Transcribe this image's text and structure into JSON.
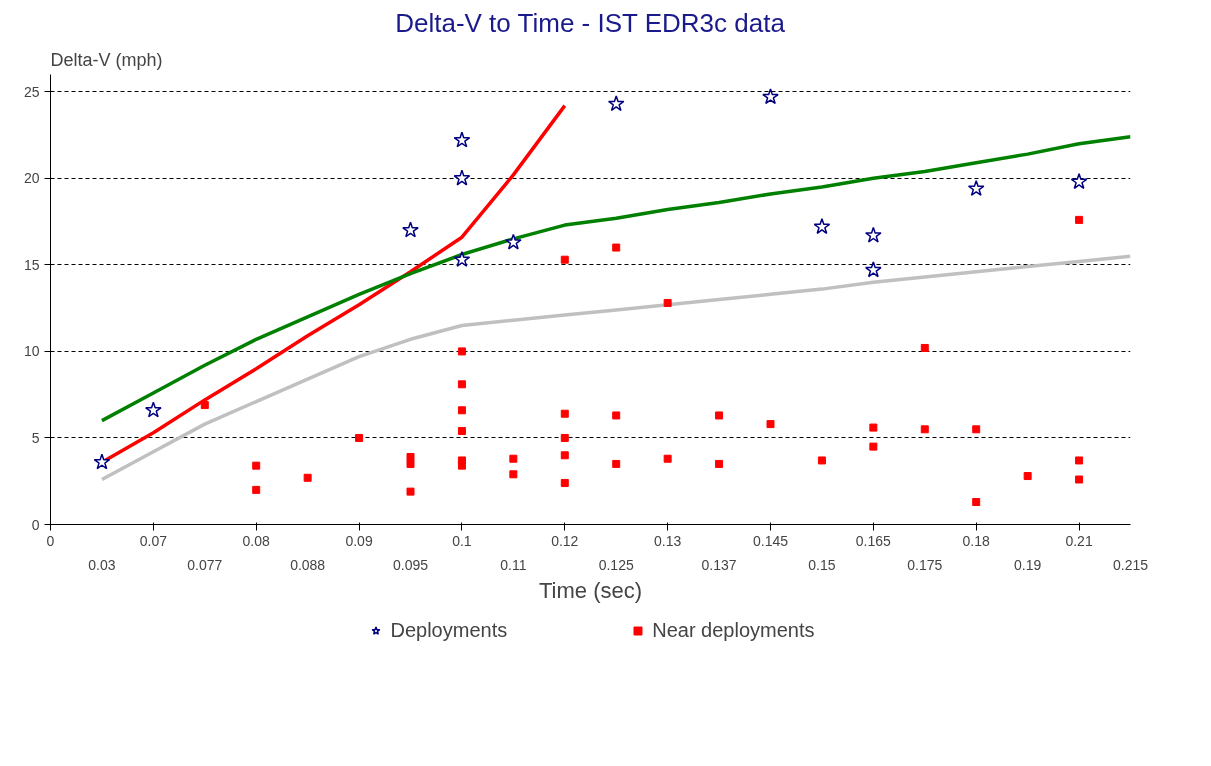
{
  "chart_data": {
    "type": "scatter",
    "title": "Delta-V to Time - IST EDR3c data",
    "xlabel": "Time (sec)",
    "ylabel": "Delta-V (mph)",
    "categories": [
      "0",
      "0.03",
      "0.07",
      "0.077",
      "0.08",
      "0.088",
      "0.09",
      "0.095",
      "0.1",
      "0.11",
      "0.12",
      "0.125",
      "0.13",
      "0.137",
      "0.145",
      "0.15",
      "0.165",
      "0.175",
      "0.18",
      "0.19",
      "0.21",
      "0.215"
    ],
    "ylim": [
      0,
      26
    ],
    "yticks": [
      0,
      5,
      10,
      15,
      20,
      25
    ],
    "grid": "y",
    "legend": "bottom",
    "series": [
      {
        "type": "line",
        "color": "#ff0000",
        "x": [
          "0.03",
          "0.07",
          "0.077",
          "0.08",
          "0.088",
          "0.09",
          "0.095",
          "0.1",
          "0.11",
          "0.12"
        ],
        "values": [
          3.6,
          5.3,
          7.2,
          9.0,
          10.9,
          12.7,
          14.6,
          16.6,
          20.2,
          24.2
        ]
      },
      {
        "type": "line",
        "color": "#008000",
        "x": [
          "0.03",
          "0.07",
          "0.077",
          "0.08",
          "0.088",
          "0.09",
          "0.095",
          "0.1",
          "0.11",
          "0.12",
          "0.125",
          "0.13",
          "0.137",
          "0.145",
          "0.15",
          "0.165",
          "0.175",
          "0.18",
          "0.19",
          "0.21",
          "0.215"
        ],
        "values": [
          6,
          7.6,
          9.2,
          10.7,
          12.0,
          13.3,
          14.5,
          15.6,
          16.5,
          17.3,
          17.7,
          18.2,
          18.6,
          19.1,
          19.5,
          20.0,
          20.4,
          20.9,
          21.4,
          22.0,
          22.4
        ]
      },
      {
        "type": "line",
        "color": "#c0c0c0",
        "x": [
          "0.03",
          "0.07",
          "0.077",
          "0.08",
          "0.088",
          "0.09",
          "0.095",
          "0.1",
          "0.11",
          "0.12",
          "0.125",
          "0.13",
          "0.137",
          "0.145",
          "0.15",
          "0.165",
          "0.175",
          "0.18",
          "0.19",
          "0.21",
          "0.215"
        ],
        "values": [
          2.6,
          4.2,
          5.8,
          7.1,
          8.4,
          9.7,
          10.7,
          11.5,
          11.8,
          12.1,
          12.4,
          12.7,
          13.0,
          13.3,
          13.6,
          14.0,
          14.3,
          14.6,
          14.9,
          15.2,
          15.5
        ]
      },
      {
        "name": "Deployments",
        "color": "#000080",
        "marker": "star",
        "x": [
          "0.03",
          "0.07",
          "0.095",
          "0.1",
          "0.1",
          "0.1",
          "0.11",
          "0.125",
          "0.145",
          "0.15",
          "0.165",
          "0.165",
          "0.18",
          "0.21"
        ],
        "values": [
          3.6,
          6.6,
          17,
          22.2,
          20,
          15.3,
          16.3,
          24.3,
          24.7,
          17.2,
          16.7,
          14.7,
          19.4,
          19.8
        ]
      },
      {
        "name": "Near deployments",
        "color": "#ff0000",
        "marker": "square",
        "x": [
          "0.077",
          "0.08",
          "0.08",
          "0.088",
          "0.09",
          "0.095",
          "0.095",
          "0.095",
          "0.1",
          "0.1",
          "0.1",
          "0.1",
          "0.1",
          "0.1",
          "0.11",
          "0.11",
          "0.12",
          "0.12",
          "0.12",
          "0.12",
          "0.12",
          "0.125",
          "0.125",
          "0.125",
          "0.13",
          "0.13",
          "0.137",
          "0.137",
          "0.145",
          "0.15",
          "0.165",
          "0.165",
          "0.175",
          "0.175",
          "0.18",
          "0.18",
          "0.19",
          "0.21",
          "0.21",
          "0.21"
        ],
        "values": [
          6.9,
          3.4,
          2.0,
          2.7,
          5.0,
          3.9,
          3.5,
          1.9,
          10,
          8.1,
          6.6,
          5.4,
          3.7,
          3.4,
          3.8,
          2.9,
          15.3,
          6.4,
          5.0,
          4.0,
          2.4,
          16,
          6.3,
          3.5,
          12.8,
          3.8,
          6.3,
          3.5,
          5.8,
          3.7,
          5.6,
          4.5,
          10.2,
          5.5,
          5.5,
          1.3,
          2.8,
          17.6,
          3.7,
          2.6
        ]
      }
    ]
  }
}
